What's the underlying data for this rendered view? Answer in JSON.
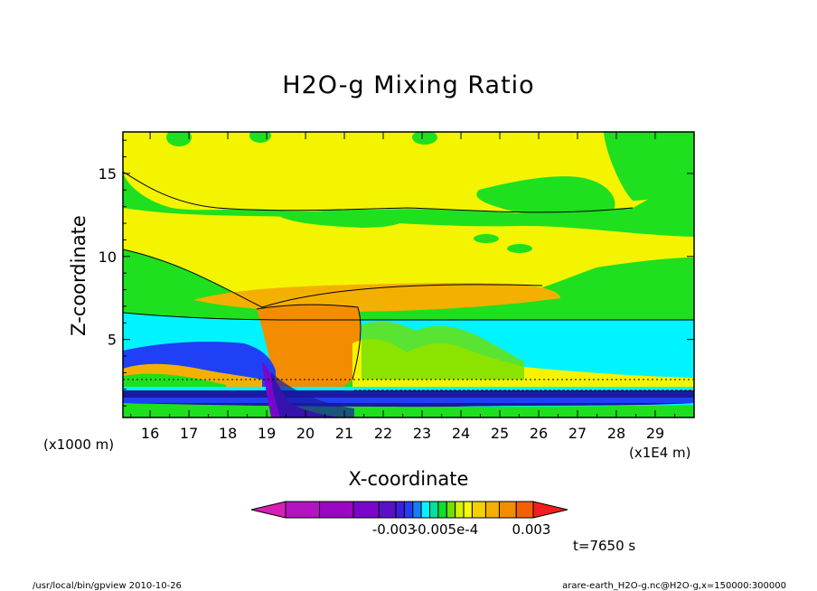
{
  "chart_data": {
    "type": "heatmap",
    "title": "H2O-g Mixing Ratio",
    "xlabel": "X-coordinate",
    "ylabel": "Z-coordinate",
    "x_unit_label": "(x1E4 m)",
    "y_unit_label": "(x1000 m)",
    "xlim": [
      15.3,
      30.0
    ],
    "ylim": [
      0.3,
      17.5
    ],
    "x_ticks": [
      "16",
      "17",
      "18",
      "19",
      "20",
      "21",
      "22",
      "23",
      "24",
      "25",
      "26",
      "27",
      "28",
      "29"
    ],
    "y_ticks": [
      "5",
      "10",
      "15"
    ],
    "colorbar": {
      "colors": [
        "#d81fb4",
        "#b313c0",
        "#9a06c4",
        "#7a06cc",
        "#5a10c8",
        "#3c1ee0",
        "#1f40f6",
        "#0f80ff",
        "#00f4ff",
        "#00e0a0",
        "#0be030",
        "#6fe000",
        "#d6f000",
        "#fafa00",
        "#f4d000",
        "#f4b000",
        "#f48c00",
        "#f46000",
        "#f41e1e"
      ],
      "labels": [
        "-0.003",
        "-0.005e-4",
        "0.003"
      ]
    },
    "time_label": "t=7650 s"
  },
  "footer": {
    "left": "/usr/local/bin/gpview  2010-10-26",
    "right": "arare-earth_H2O-g.nc@H2O-g,x=150000:300000"
  },
  "colors": {
    "yellow": "#f4f400",
    "green": "#1ee01e",
    "lightgreen": "#6fe000",
    "cyan": "#00f4ff",
    "orange": "#f4b000",
    "darkorange": "#f48c00",
    "blue": "#1f40f6",
    "navy": "#1a1aa0",
    "purple": "#7a06cc"
  }
}
